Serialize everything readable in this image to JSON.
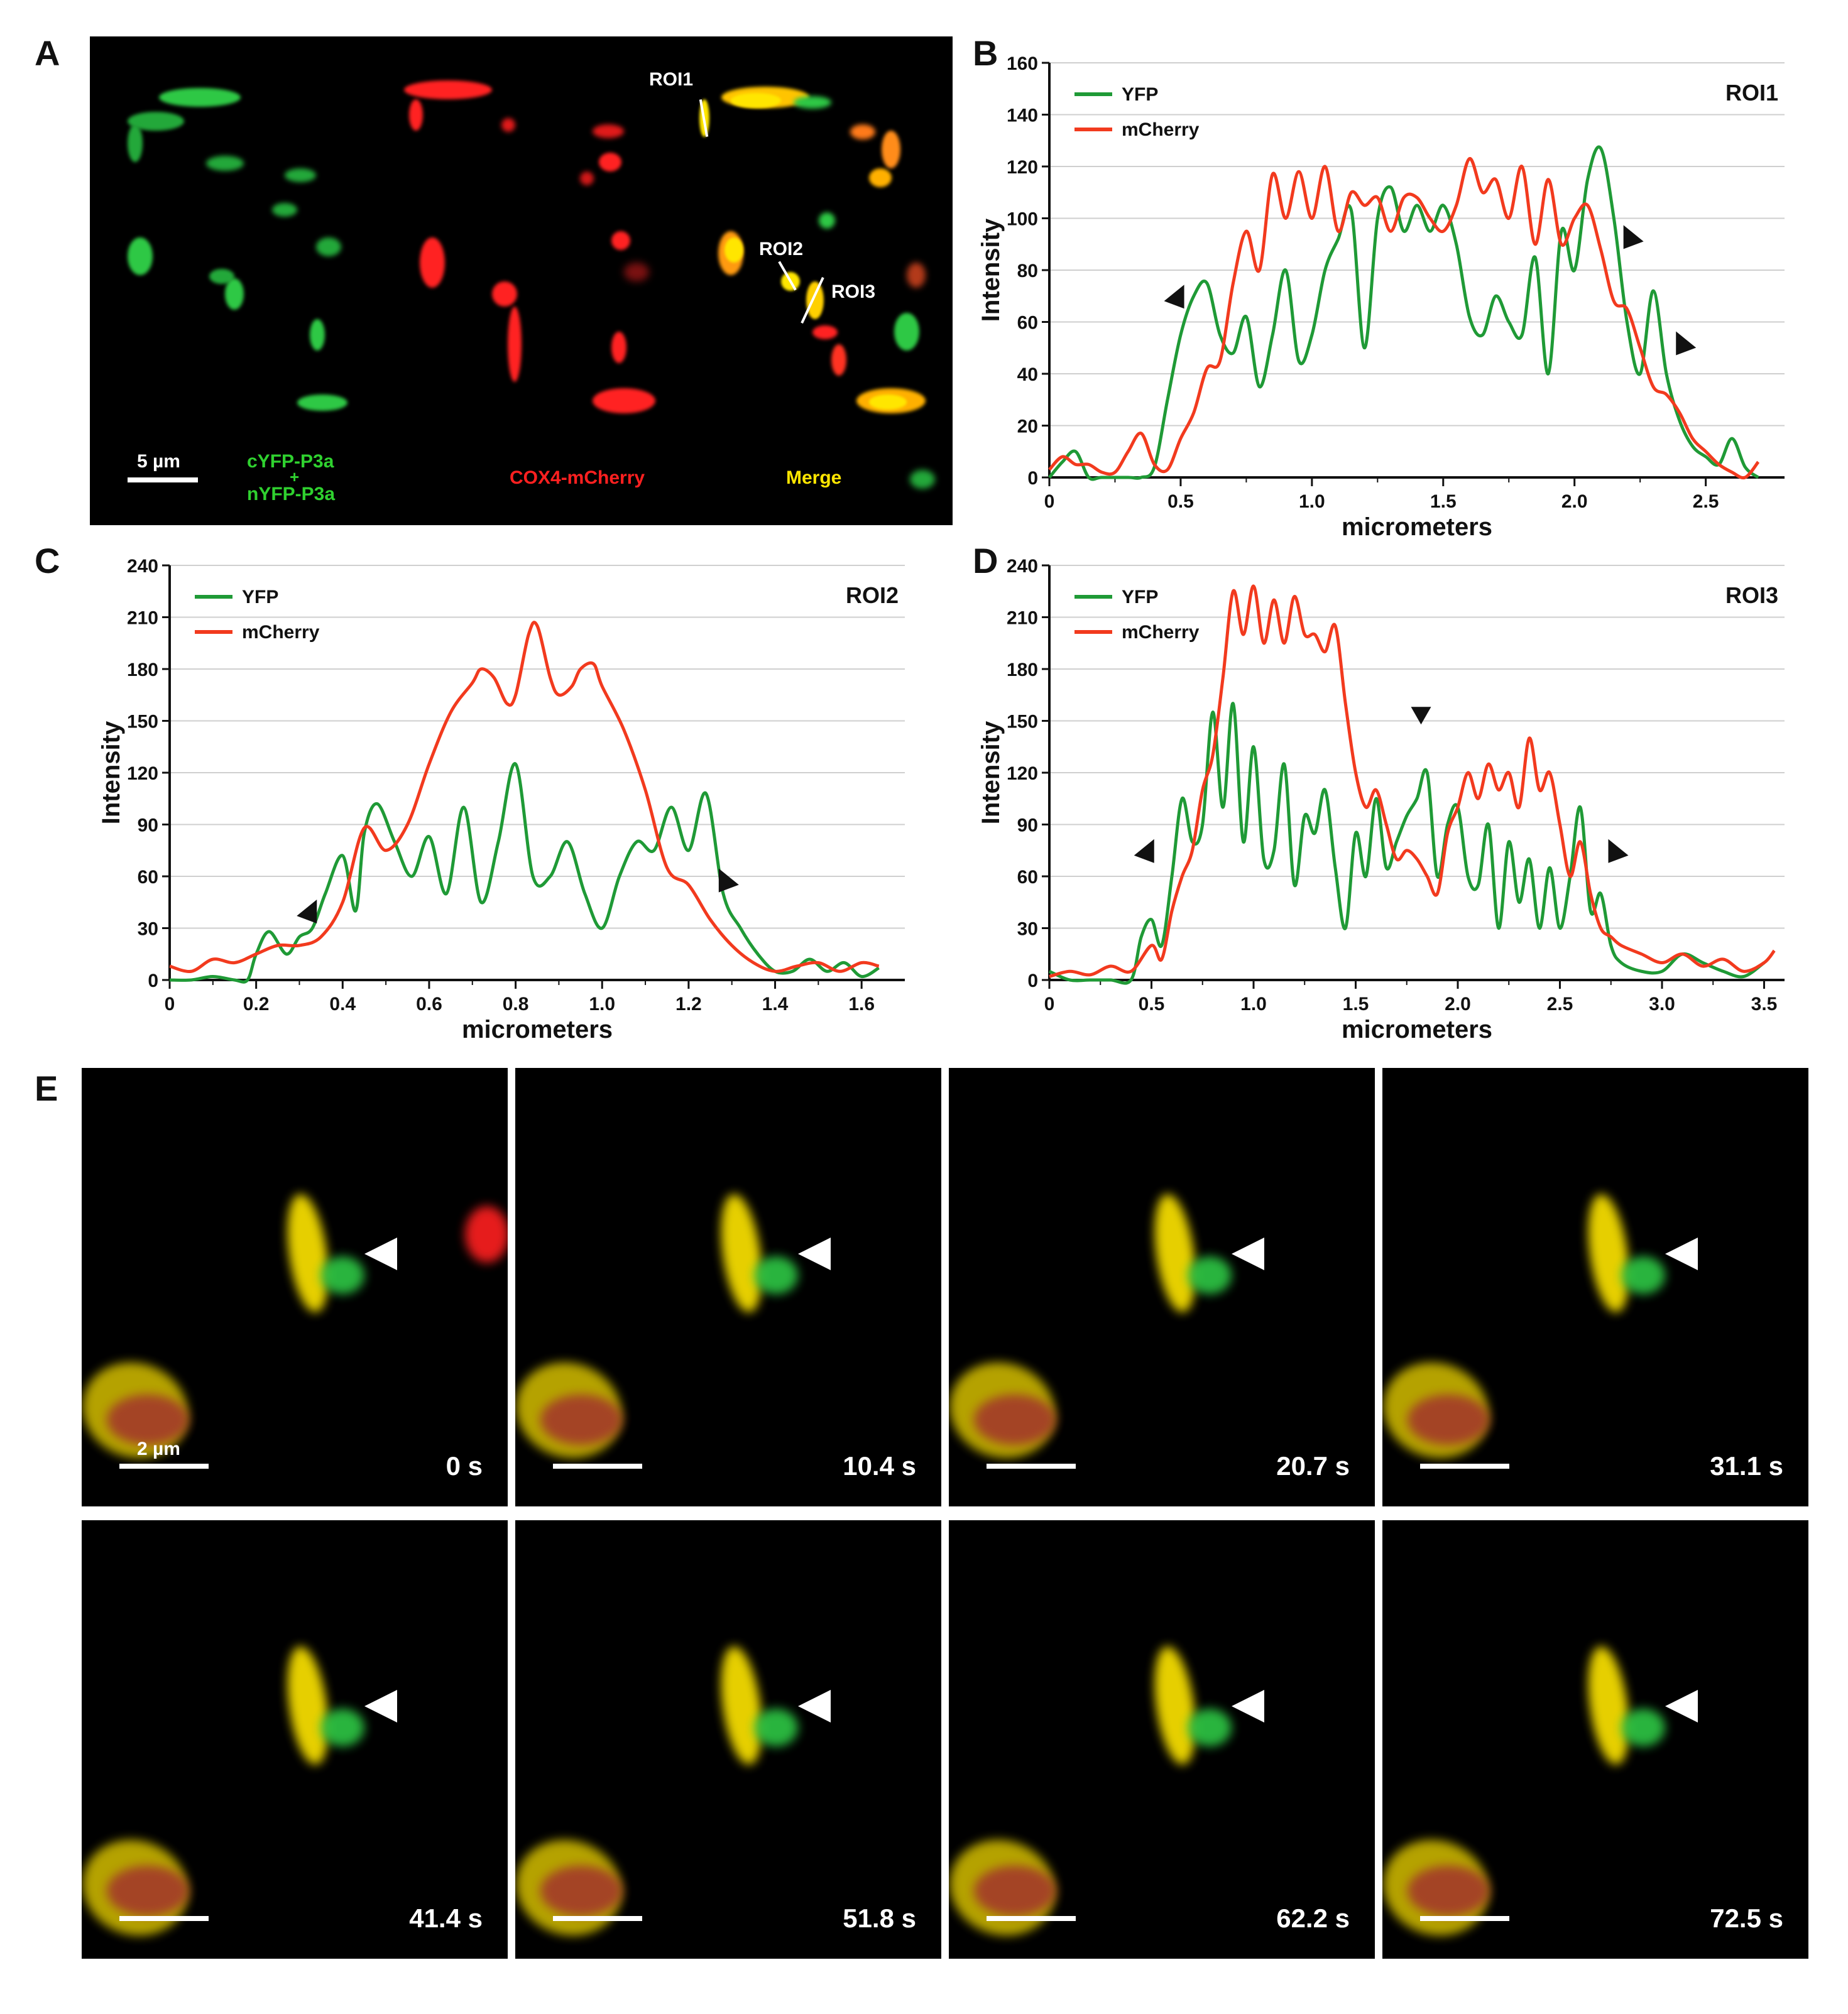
{
  "panel_letters": {
    "a": "A",
    "b": "B",
    "c": "C",
    "d": "D",
    "e": "E"
  },
  "panel_a": {
    "scale_label": "5 µm",
    "green_label_1": "cYFP-P3a",
    "green_label_plus": "+",
    "green_label_2": "nYFP-P3a",
    "red_label": "COX4-mCherry",
    "merge_label": "Merge",
    "roi1": "ROI1",
    "roi2": "ROI2",
    "roi3": "ROI3",
    "colors": {
      "green": "#2fd12f",
      "red": "#ff2020",
      "merge": "#ffe600"
    }
  },
  "chart_data": [
    {
      "type": "line",
      "panel": "B",
      "title": "ROI1",
      "xlabel": "micrometers",
      "ylabel": "Intensity",
      "xlim": [
        0,
        2.8
      ],
      "ylim": [
        0,
        160
      ],
      "xticks": [
        0,
        0.5,
        1.0,
        1.5,
        2.0,
        2.5
      ],
      "xtick_labels": [
        "0",
        "0.5",
        "1.0",
        "1.5",
        "2.0",
        "2.5"
      ],
      "yticks": [
        0,
        20,
        40,
        60,
        80,
        100,
        120,
        140,
        160
      ],
      "grid": "horizontal",
      "legend": "top-left",
      "series": [
        {
          "name": "YFP",
          "color": "#1f9a36",
          "x": [
            0,
            0.05,
            0.1,
            0.15,
            0.2,
            0.3,
            0.35,
            0.4,
            0.45,
            0.5,
            0.55,
            0.6,
            0.65,
            0.7,
            0.75,
            0.8,
            0.85,
            0.9,
            0.95,
            1.0,
            1.05,
            1.1,
            1.15,
            1.2,
            1.25,
            1.3,
            1.35,
            1.4,
            1.45,
            1.5,
            1.55,
            1.6,
            1.65,
            1.7,
            1.75,
            1.8,
            1.85,
            1.9,
            1.95,
            2.0,
            2.05,
            2.1,
            2.15,
            2.2,
            2.25,
            2.3,
            2.35,
            2.4,
            2.45,
            2.5,
            2.55,
            2.6,
            2.65,
            2.7
          ],
          "y": [
            0,
            6,
            10,
            0,
            0,
            0,
            0,
            4,
            30,
            55,
            70,
            75,
            55,
            48,
            62,
            35,
            55,
            80,
            45,
            55,
            80,
            92,
            103,
            50,
            100,
            112,
            95,
            105,
            95,
            105,
            90,
            62,
            55,
            70,
            60,
            55,
            85,
            40,
            95,
            80,
            115,
            127,
            100,
            60,
            40,
            72,
            40,
            22,
            12,
            8,
            5,
            15,
            4,
            0
          ]
        },
        {
          "name": "mCherry",
          "color": "#f23a1e",
          "x": [
            0,
            0.05,
            0.1,
            0.15,
            0.2,
            0.25,
            0.3,
            0.35,
            0.4,
            0.45,
            0.5,
            0.55,
            0.6,
            0.65,
            0.7,
            0.75,
            0.8,
            0.85,
            0.9,
            0.95,
            1.0,
            1.05,
            1.1,
            1.15,
            1.2,
            1.25,
            1.3,
            1.35,
            1.4,
            1.45,
            1.5,
            1.55,
            1.6,
            1.65,
            1.7,
            1.75,
            1.8,
            1.85,
            1.9,
            1.95,
            2.0,
            2.05,
            2.1,
            2.15,
            2.2,
            2.25,
            2.3,
            2.35,
            2.4,
            2.45,
            2.5,
            2.55,
            2.6,
            2.65,
            2.7
          ],
          "y": [
            3,
            8,
            5,
            5,
            2,
            2,
            10,
            17,
            5,
            3,
            15,
            25,
            42,
            45,
            75,
            95,
            80,
            117,
            100,
            118,
            100,
            120,
            95,
            110,
            105,
            108,
            95,
            108,
            108,
            100,
            95,
            105,
            123,
            110,
            115,
            100,
            120,
            90,
            115,
            90,
            100,
            105,
            88,
            68,
            65,
            50,
            35,
            32,
            25,
            15,
            10,
            5,
            2,
            0,
            6
          ]
        }
      ]
    },
    {
      "type": "line",
      "panel": "C",
      "title": "ROI2",
      "xlabel": "micrometers",
      "ylabel": "Intensity",
      "xlim": [
        0,
        1.7
      ],
      "ylim": [
        0,
        240
      ],
      "xticks": [
        0,
        0.2,
        0.4,
        0.6,
        0.8,
        1.0,
        1.2,
        1.4,
        1.6
      ],
      "xtick_labels": [
        "0",
        "0.2",
        "0.4",
        "0.6",
        "0.8",
        "1.0",
        "1.2",
        "1.4",
        "1.6"
      ],
      "yticks": [
        0,
        30,
        60,
        90,
        120,
        150,
        180,
        210,
        240
      ],
      "grid": "horizontal",
      "legend": "top-left",
      "series": [
        {
          "name": "YFP",
          "color": "#1f9a36",
          "x": [
            0,
            0.05,
            0.1,
            0.15,
            0.18,
            0.2,
            0.23,
            0.27,
            0.3,
            0.33,
            0.36,
            0.4,
            0.43,
            0.45,
            0.48,
            0.52,
            0.56,
            0.6,
            0.64,
            0.68,
            0.72,
            0.76,
            0.8,
            0.84,
            0.88,
            0.92,
            0.96,
            1.0,
            1.04,
            1.08,
            1.12,
            1.16,
            1.2,
            1.24,
            1.28,
            1.32,
            1.36,
            1.4,
            1.44,
            1.48,
            1.52,
            1.56,
            1.6,
            1.64
          ],
          "y": [
            0,
            0,
            2,
            0,
            0,
            15,
            28,
            15,
            25,
            30,
            50,
            72,
            40,
            85,
            102,
            80,
            60,
            83,
            50,
            100,
            45,
            80,
            125,
            60,
            60,
            80,
            50,
            30,
            60,
            80,
            75,
            100,
            75,
            108,
            50,
            30,
            15,
            5,
            5,
            12,
            5,
            10,
            2,
            7
          ]
        },
        {
          "name": "mCherry",
          "color": "#f23a1e",
          "x": [
            0,
            0.05,
            0.1,
            0.15,
            0.2,
            0.25,
            0.3,
            0.35,
            0.4,
            0.45,
            0.5,
            0.55,
            0.6,
            0.65,
            0.7,
            0.72,
            0.75,
            0.78,
            0.8,
            0.83,
            0.85,
            0.88,
            0.9,
            0.93,
            0.95,
            0.98,
            1.0,
            1.05,
            1.1,
            1.15,
            1.2,
            1.25,
            1.3,
            1.35,
            1.4,
            1.45,
            1.5,
            1.55,
            1.6,
            1.64
          ],
          "y": [
            8,
            5,
            12,
            10,
            15,
            20,
            20,
            25,
            45,
            88,
            75,
            90,
            125,
            155,
            172,
            180,
            175,
            160,
            165,
            200,
            205,
            175,
            165,
            170,
            180,
            183,
            170,
            145,
            110,
            65,
            55,
            35,
            20,
            10,
            5,
            8,
            10,
            5,
            10,
            8
          ]
        }
      ]
    },
    {
      "type": "line",
      "panel": "D",
      "title": "ROI3",
      "xlabel": "micrometers",
      "ylabel": "Intensity",
      "xlim": [
        0,
        3.6
      ],
      "ylim": [
        0,
        240
      ],
      "xticks": [
        0,
        0.5,
        1.0,
        1.5,
        2.0,
        2.5,
        3.0,
        3.5
      ],
      "xtick_labels": [
        "0",
        "0.5",
        "1.0",
        "1.5",
        "2.0",
        "2.5",
        "3.0",
        "3.5"
      ],
      "yticks": [
        0,
        30,
        60,
        90,
        120,
        150,
        180,
        210,
        240
      ],
      "grid": "horizontal",
      "legend": "top-left",
      "series": [
        {
          "name": "YFP",
          "color": "#1f9a36",
          "x": [
            0,
            0.1,
            0.2,
            0.3,
            0.4,
            0.45,
            0.5,
            0.55,
            0.6,
            0.65,
            0.7,
            0.75,
            0.8,
            0.85,
            0.9,
            0.95,
            1.0,
            1.05,
            1.1,
            1.15,
            1.2,
            1.25,
            1.3,
            1.35,
            1.4,
            1.45,
            1.5,
            1.55,
            1.6,
            1.65,
            1.7,
            1.75,
            1.8,
            1.85,
            1.9,
            1.95,
            2.0,
            2.05,
            2.1,
            2.15,
            2.2,
            2.25,
            2.3,
            2.35,
            2.4,
            2.45,
            2.5,
            2.55,
            2.6,
            2.65,
            2.7,
            2.75,
            2.8,
            2.9,
            3.0,
            3.1,
            3.2,
            3.3,
            3.4,
            3.5
          ],
          "y": [
            5,
            0,
            0,
            0,
            0,
            25,
            35,
            20,
            60,
            105,
            80,
            90,
            155,
            100,
            160,
            80,
            135,
            70,
            75,
            125,
            55,
            95,
            85,
            110,
            65,
            30,
            85,
            60,
            105,
            65,
            80,
            95,
            105,
            120,
            60,
            90,
            100,
            60,
            55,
            90,
            30,
            80,
            45,
            70,
            30,
            65,
            30,
            60,
            100,
            40,
            50,
            20,
            10,
            5,
            5,
            15,
            10,
            5,
            2,
            10
          ]
        },
        {
          "name": "mCherry",
          "color": "#f23a1e",
          "x": [
            0,
            0.1,
            0.2,
            0.3,
            0.4,
            0.5,
            0.55,
            0.6,
            0.65,
            0.7,
            0.75,
            0.8,
            0.85,
            0.9,
            0.95,
            1.0,
            1.05,
            1.1,
            1.15,
            1.2,
            1.25,
            1.3,
            1.35,
            1.4,
            1.45,
            1.5,
            1.55,
            1.6,
            1.65,
            1.7,
            1.75,
            1.8,
            1.85,
            1.9,
            1.95,
            2.0,
            2.05,
            2.1,
            2.15,
            2.2,
            2.25,
            2.3,
            2.35,
            2.4,
            2.45,
            2.5,
            2.55,
            2.6,
            2.65,
            2.7,
            2.75,
            2.8,
            2.9,
            3.0,
            3.1,
            3.2,
            3.3,
            3.4,
            3.5,
            3.55
          ],
          "y": [
            2,
            5,
            3,
            8,
            5,
            20,
            12,
            40,
            60,
            75,
            110,
            130,
            175,
            225,
            200,
            228,
            195,
            220,
            195,
            222,
            200,
            200,
            190,
            205,
            160,
            120,
            100,
            110,
            90,
            70,
            75,
            70,
            60,
            50,
            85,
            100,
            120,
            105,
            125,
            110,
            120,
            100,
            140,
            110,
            120,
            90,
            60,
            80,
            50,
            30,
            25,
            20,
            15,
            10,
            15,
            8,
            12,
            5,
            10,
            17
          ]
        }
      ]
    }
  ],
  "panel_e": {
    "scale_label": "2 µm",
    "frames_top": [
      "0 s",
      "10.4 s",
      "20.7 s",
      "31.1 s"
    ],
    "frames_bottom": [
      "41.4 s",
      "51.8 s",
      "62.2 s",
      "72.5 s"
    ]
  }
}
